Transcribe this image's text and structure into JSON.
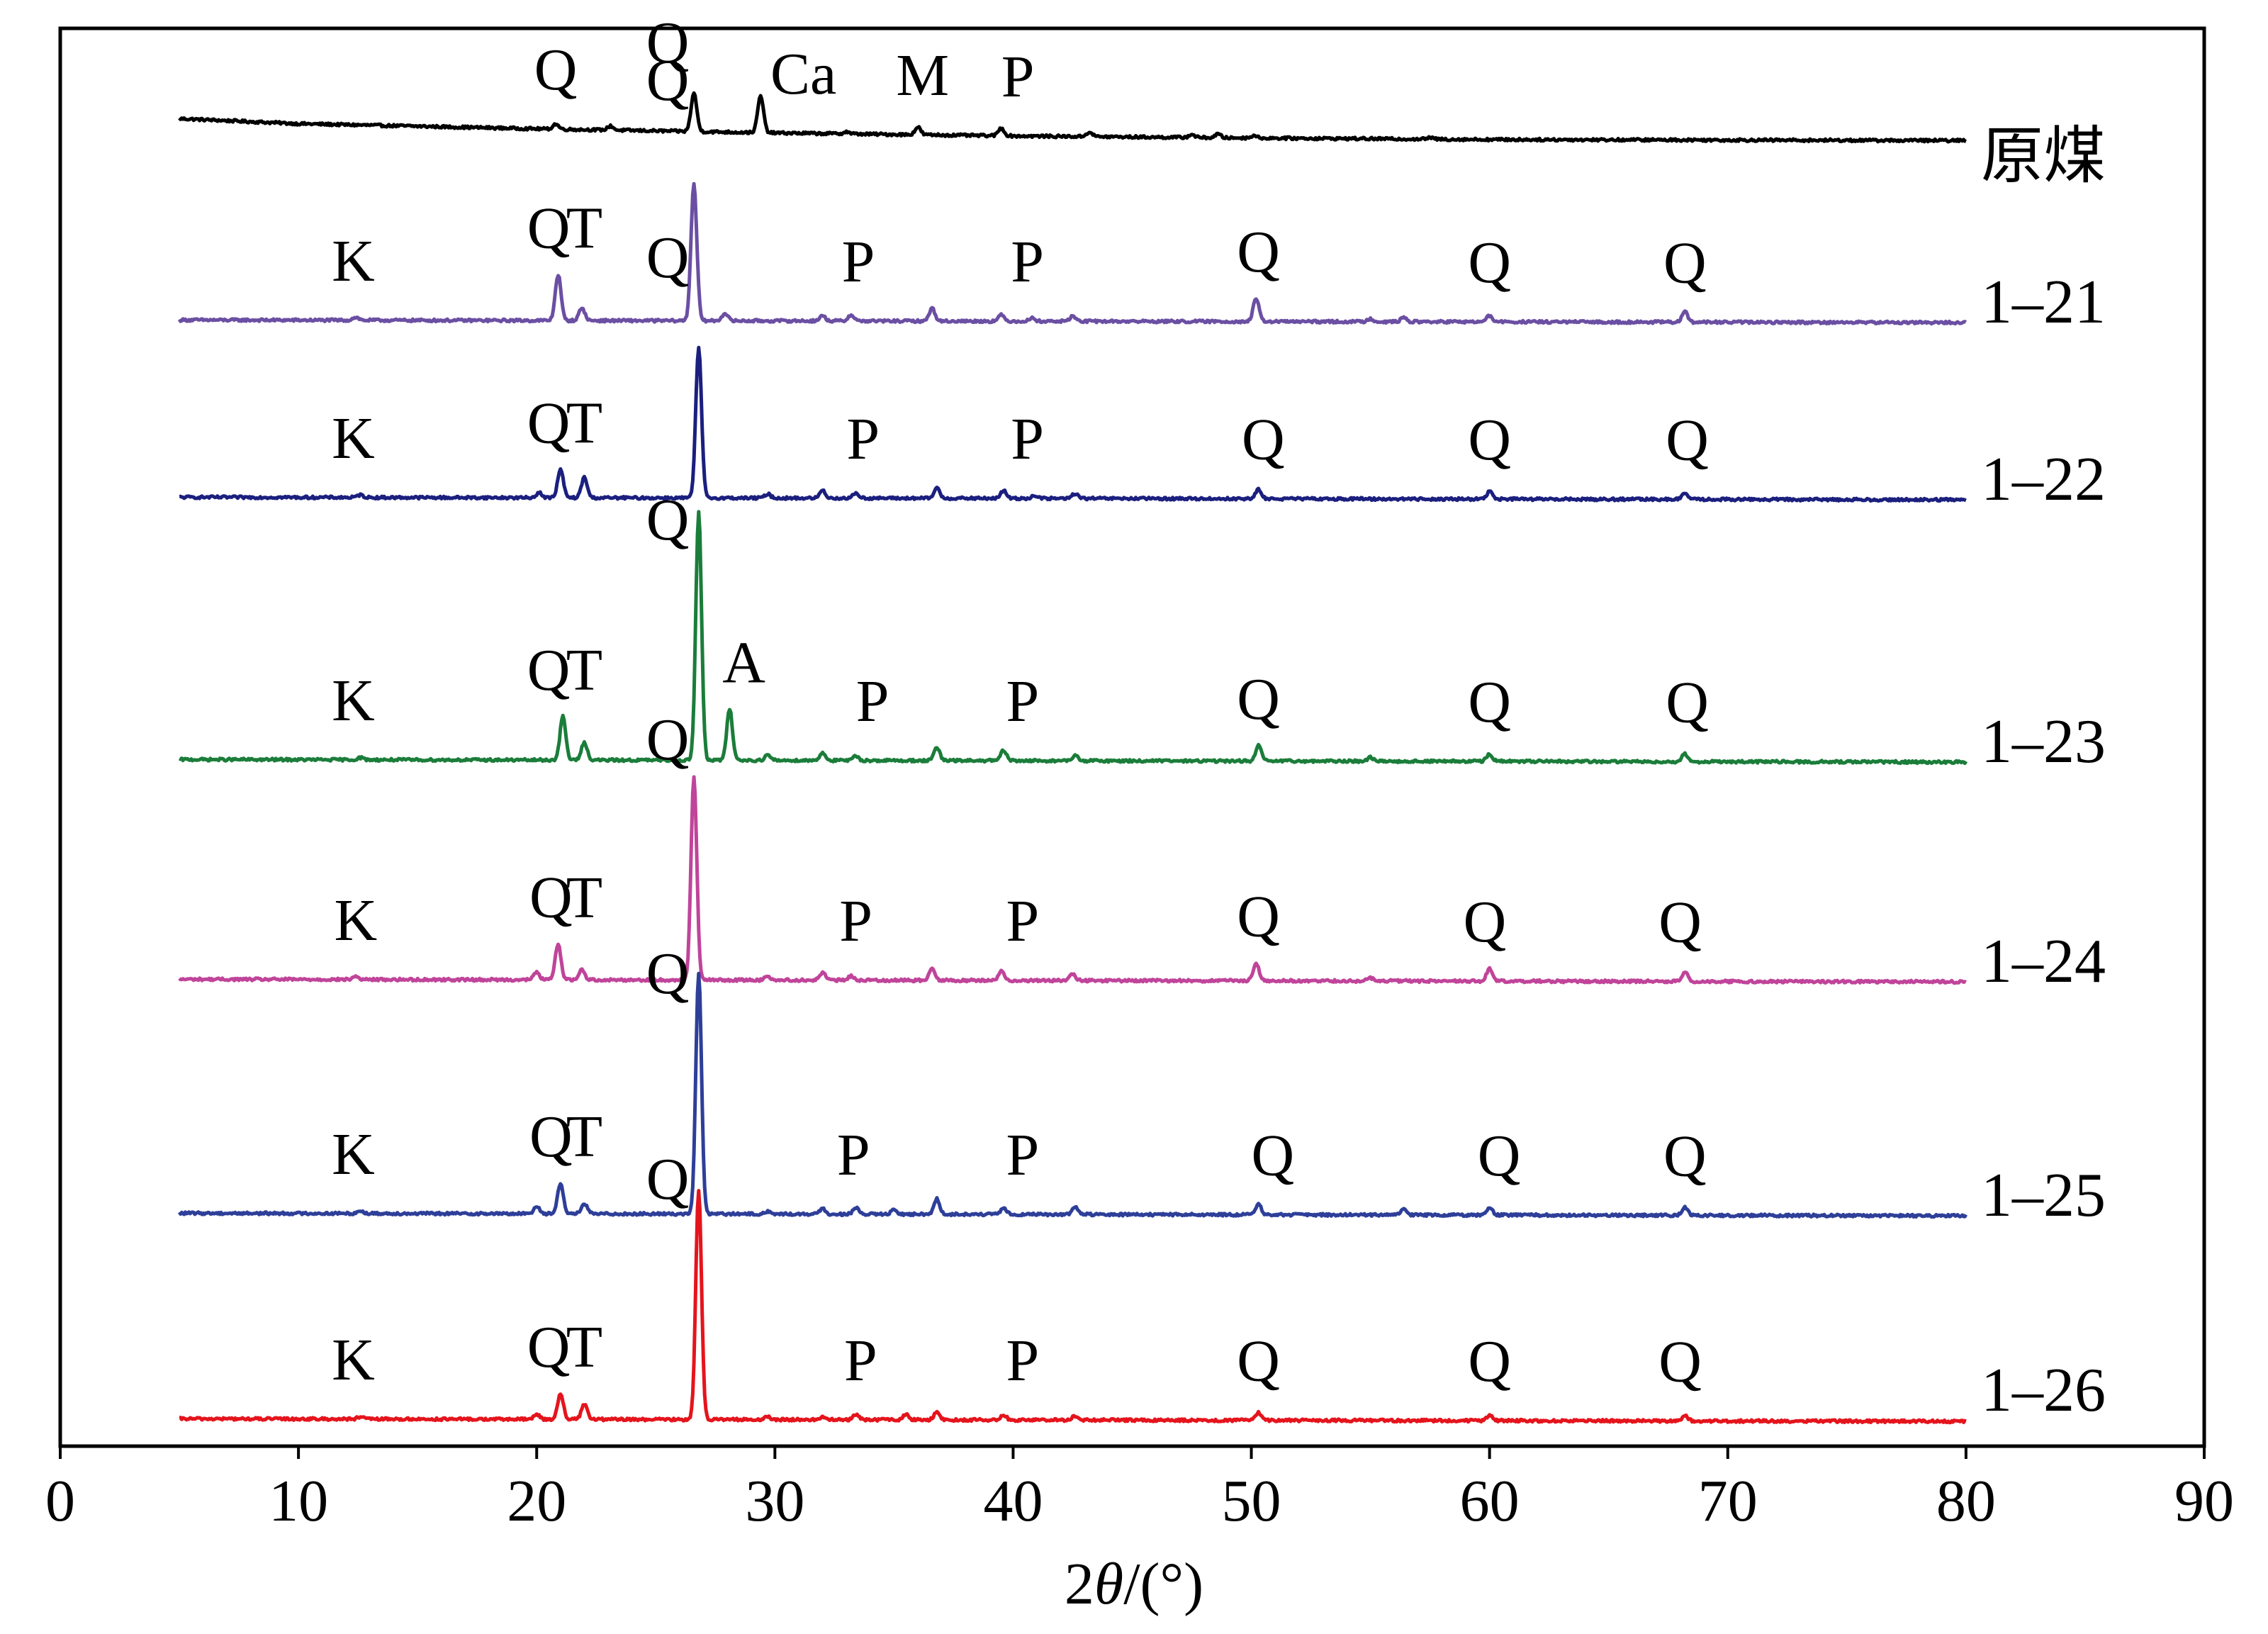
{
  "chart_data": {
    "type": "line",
    "title": "",
    "xlabel": "2θ/(°)",
    "ylabel": "",
    "xlim": [
      0,
      90
    ],
    "xticks": [
      0,
      10,
      20,
      30,
      40,
      50,
      60,
      70,
      80,
      90
    ],
    "y_axis_ticks": "none",
    "grid": false,
    "legend": "none",
    "series": [
      {
        "name": "原煤",
        "color": "#000000",
        "baseline": [
          [
            5,
            0.94
          ],
          [
            10,
            0.84
          ],
          [
            20,
            0.74
          ],
          [
            30,
            0.66
          ],
          [
            40,
            0.6
          ],
          [
            50,
            0.56
          ],
          [
            60,
            0.53
          ],
          [
            70,
            0.52
          ],
          [
            80,
            0.51
          ]
        ],
        "peaks": [
          [
            20.8,
            0.1
          ],
          [
            23.1,
            0.08
          ],
          [
            26.6,
            0.75
          ],
          [
            29.4,
            0.72
          ],
          [
            33.0,
            0.04
          ],
          [
            36.0,
            0.15
          ],
          [
            39.5,
            0.15
          ],
          [
            43.2,
            0.09
          ],
          [
            47.5,
            0.06
          ],
          [
            48.6,
            0.07
          ],
          [
            50.1,
            0.05
          ],
          [
            57.5,
            0.03
          ]
        ],
        "peak_labels": [
          {
            "x": 20.8,
            "label": "Q"
          },
          {
            "x": 25.5,
            "label": "Q"
          },
          {
            "x": 31.2,
            "label": "Ca"
          },
          {
            "x": 36.2,
            "label": "M"
          },
          {
            "x": 40.2,
            "label": "P"
          }
        ]
      },
      {
        "name": "1–21",
        "color": "#6b4fa3",
        "baseline": [
          [
            5,
            0.05
          ],
          [
            80,
            0.0
          ]
        ],
        "peaks": [
          [
            12.4,
            0.06
          ],
          [
            20.9,
            0.9
          ],
          [
            21.9,
            0.25
          ],
          [
            26.6,
            2.7
          ],
          [
            27.9,
            0.15
          ],
          [
            32.0,
            0.1
          ],
          [
            33.2,
            0.12
          ],
          [
            36.6,
            0.25
          ],
          [
            39.5,
            0.12
          ],
          [
            40.8,
            0.06
          ],
          [
            42.5,
            0.1
          ],
          [
            50.2,
            0.45
          ],
          [
            55.0,
            0.06
          ],
          [
            56.4,
            0.08
          ],
          [
            60.0,
            0.12
          ],
          [
            68.2,
            0.2
          ]
        ],
        "peak_labels": [
          {
            "x": 12.3,
            "label": "K"
          },
          {
            "x": 20.5,
            "label": "Q"
          },
          {
            "x": 22.0,
            "label": "T"
          },
          {
            "x": 25.5,
            "label": "Q"
          },
          {
            "x": 33.5,
            "label": "P"
          },
          {
            "x": 40.6,
            "label": "P"
          },
          {
            "x": 50.3,
            "label": "Q"
          },
          {
            "x": 60.0,
            "label": "Q"
          },
          {
            "x": 68.2,
            "label": "Q"
          }
        ]
      },
      {
        "name": "1–22",
        "color": "#1b1f7e",
        "baseline": [
          [
            5,
            0.05
          ],
          [
            80,
            0.0
          ]
        ],
        "peaks": [
          [
            12.6,
            0.05
          ],
          [
            20.1,
            0.1
          ],
          [
            21.0,
            0.55
          ],
          [
            22.0,
            0.4
          ],
          [
            26.8,
            2.95
          ],
          [
            29.7,
            0.08
          ],
          [
            32.0,
            0.15
          ],
          [
            33.4,
            0.1
          ],
          [
            36.8,
            0.2
          ],
          [
            39.6,
            0.15
          ],
          [
            40.9,
            0.06
          ],
          [
            42.6,
            0.1
          ],
          [
            50.3,
            0.18
          ],
          [
            60.0,
            0.15
          ],
          [
            68.2,
            0.12
          ]
        ],
        "peak_labels": [
          {
            "x": 12.3,
            "label": "K"
          },
          {
            "x": 20.5,
            "label": "Q"
          },
          {
            "x": 22.0,
            "label": "T"
          },
          {
            "x": 25.5,
            "label": "Q"
          },
          {
            "x": 33.7,
            "label": "P"
          },
          {
            "x": 40.6,
            "label": "P"
          },
          {
            "x": 50.5,
            "label": "Q"
          },
          {
            "x": 60.0,
            "label": "Q"
          },
          {
            "x": 68.3,
            "label": "Q"
          }
        ]
      },
      {
        "name": "1–23",
        "color": "#1b7d3a",
        "baseline": [
          [
            5,
            0.05
          ],
          [
            80,
            0.0
          ]
        ],
        "peaks": [
          [
            12.6,
            0.04
          ],
          [
            21.1,
            0.85
          ],
          [
            22.0,
            0.35
          ],
          [
            26.8,
            4.85
          ],
          [
            28.1,
            1.0
          ],
          [
            29.7,
            0.1
          ],
          [
            32.0,
            0.15
          ],
          [
            33.4,
            0.08
          ],
          [
            36.8,
            0.25
          ],
          [
            39.6,
            0.2
          ],
          [
            42.6,
            0.1
          ],
          [
            50.3,
            0.3
          ],
          [
            55.0,
            0.08
          ],
          [
            60.0,
            0.15
          ],
          [
            68.2,
            0.15
          ]
        ],
        "peak_labels": [
          {
            "x": 12.3,
            "label": "K"
          },
          {
            "x": 20.5,
            "label": "Q"
          },
          {
            "x": 22.0,
            "label": "T"
          },
          {
            "x": 25.5,
            "label": "Q"
          },
          {
            "x": 28.7,
            "label": "A"
          },
          {
            "x": 34.1,
            "label": "P"
          },
          {
            "x": 40.4,
            "label": "P"
          },
          {
            "x": 50.3,
            "label": "Q"
          },
          {
            "x": 60.0,
            "label": "Q"
          },
          {
            "x": 68.3,
            "label": "Q"
          }
        ]
      },
      {
        "name": "1–24",
        "color": "#c0449a",
        "baseline": [
          [
            5,
            0.05
          ],
          [
            80,
            0.0
          ]
        ],
        "peaks": [
          [
            12.4,
            0.06
          ],
          [
            20.0,
            0.15
          ],
          [
            20.9,
            0.7
          ],
          [
            21.9,
            0.2
          ],
          [
            26.6,
            4.0
          ],
          [
            29.7,
            0.08
          ],
          [
            32.0,
            0.15
          ],
          [
            33.2,
            0.08
          ],
          [
            36.6,
            0.25
          ],
          [
            39.5,
            0.18
          ],
          [
            42.5,
            0.12
          ],
          [
            50.2,
            0.35
          ],
          [
            55.0,
            0.06
          ],
          [
            60.0,
            0.25
          ],
          [
            68.2,
            0.18
          ]
        ],
        "peak_labels": [
          {
            "x": 12.4,
            "label": "K"
          },
          {
            "x": 20.6,
            "label": "Q"
          },
          {
            "x": 22.0,
            "label": "T"
          },
          {
            "x": 25.5,
            "label": "Q"
          },
          {
            "x": 33.4,
            "label": "P"
          },
          {
            "x": 40.4,
            "label": "P"
          },
          {
            "x": 50.3,
            "label": "Q"
          },
          {
            "x": 59.8,
            "label": "Q"
          },
          {
            "x": 68.0,
            "label": "Q"
          }
        ]
      },
      {
        "name": "1–25",
        "color": "#2e3f99",
        "baseline": [
          [
            5,
            0.05
          ],
          [
            80,
            0.0
          ]
        ],
        "peaks": [
          [
            12.6,
            0.05
          ],
          [
            20.0,
            0.15
          ],
          [
            21.0,
            0.6
          ],
          [
            22.0,
            0.2
          ],
          [
            26.8,
            4.7
          ],
          [
            29.7,
            0.05
          ],
          [
            32.0,
            0.1
          ],
          [
            33.4,
            0.12
          ],
          [
            35.0,
            0.08
          ],
          [
            36.8,
            0.3
          ],
          [
            39.6,
            0.12
          ],
          [
            42.6,
            0.15
          ],
          [
            50.3,
            0.2
          ],
          [
            56.4,
            0.1
          ],
          [
            60.0,
            0.15
          ],
          [
            68.2,
            0.15
          ]
        ],
        "peak_labels": [
          {
            "x": 12.3,
            "label": "K"
          },
          {
            "x": 20.6,
            "label": "Q"
          },
          {
            "x": 22.0,
            "label": "T"
          },
          {
            "x": 25.5,
            "label": "Q"
          },
          {
            "x": 33.3,
            "label": "P"
          },
          {
            "x": 40.4,
            "label": "P"
          },
          {
            "x": 50.9,
            "label": "Q"
          },
          {
            "x": 60.4,
            "label": "Q"
          },
          {
            "x": 68.2,
            "label": "Q"
          }
        ]
      },
      {
        "name": "1–26",
        "color": "#e5141c",
        "baseline": [
          [
            5,
            0.05
          ],
          [
            80,
            0.0
          ]
        ],
        "peaks": [
          [
            12.6,
            0.04
          ],
          [
            20.0,
            0.1
          ],
          [
            21.0,
            0.5
          ],
          [
            22.0,
            0.3
          ],
          [
            26.8,
            4.5
          ],
          [
            29.7,
            0.05
          ],
          [
            32.0,
            0.05
          ],
          [
            33.4,
            0.1
          ],
          [
            35.5,
            0.1
          ],
          [
            36.8,
            0.15
          ],
          [
            39.6,
            0.1
          ],
          [
            42.6,
            0.08
          ],
          [
            50.3,
            0.15
          ],
          [
            60.0,
            0.1
          ],
          [
            68.2,
            0.1
          ]
        ],
        "peak_labels": [
          {
            "x": 12.3,
            "label": "K"
          },
          {
            "x": 20.5,
            "label": "Q"
          },
          {
            "x": 22.0,
            "label": "T"
          },
          {
            "x": 25.5,
            "label": "Q"
          },
          {
            "x": 33.6,
            "label": "P"
          },
          {
            "x": 40.4,
            "label": "P"
          },
          {
            "x": 50.3,
            "label": "Q"
          },
          {
            "x": 60.0,
            "label": "Q"
          },
          {
            "x": 68.0,
            "label": "Q"
          }
        ]
      }
    ]
  }
}
